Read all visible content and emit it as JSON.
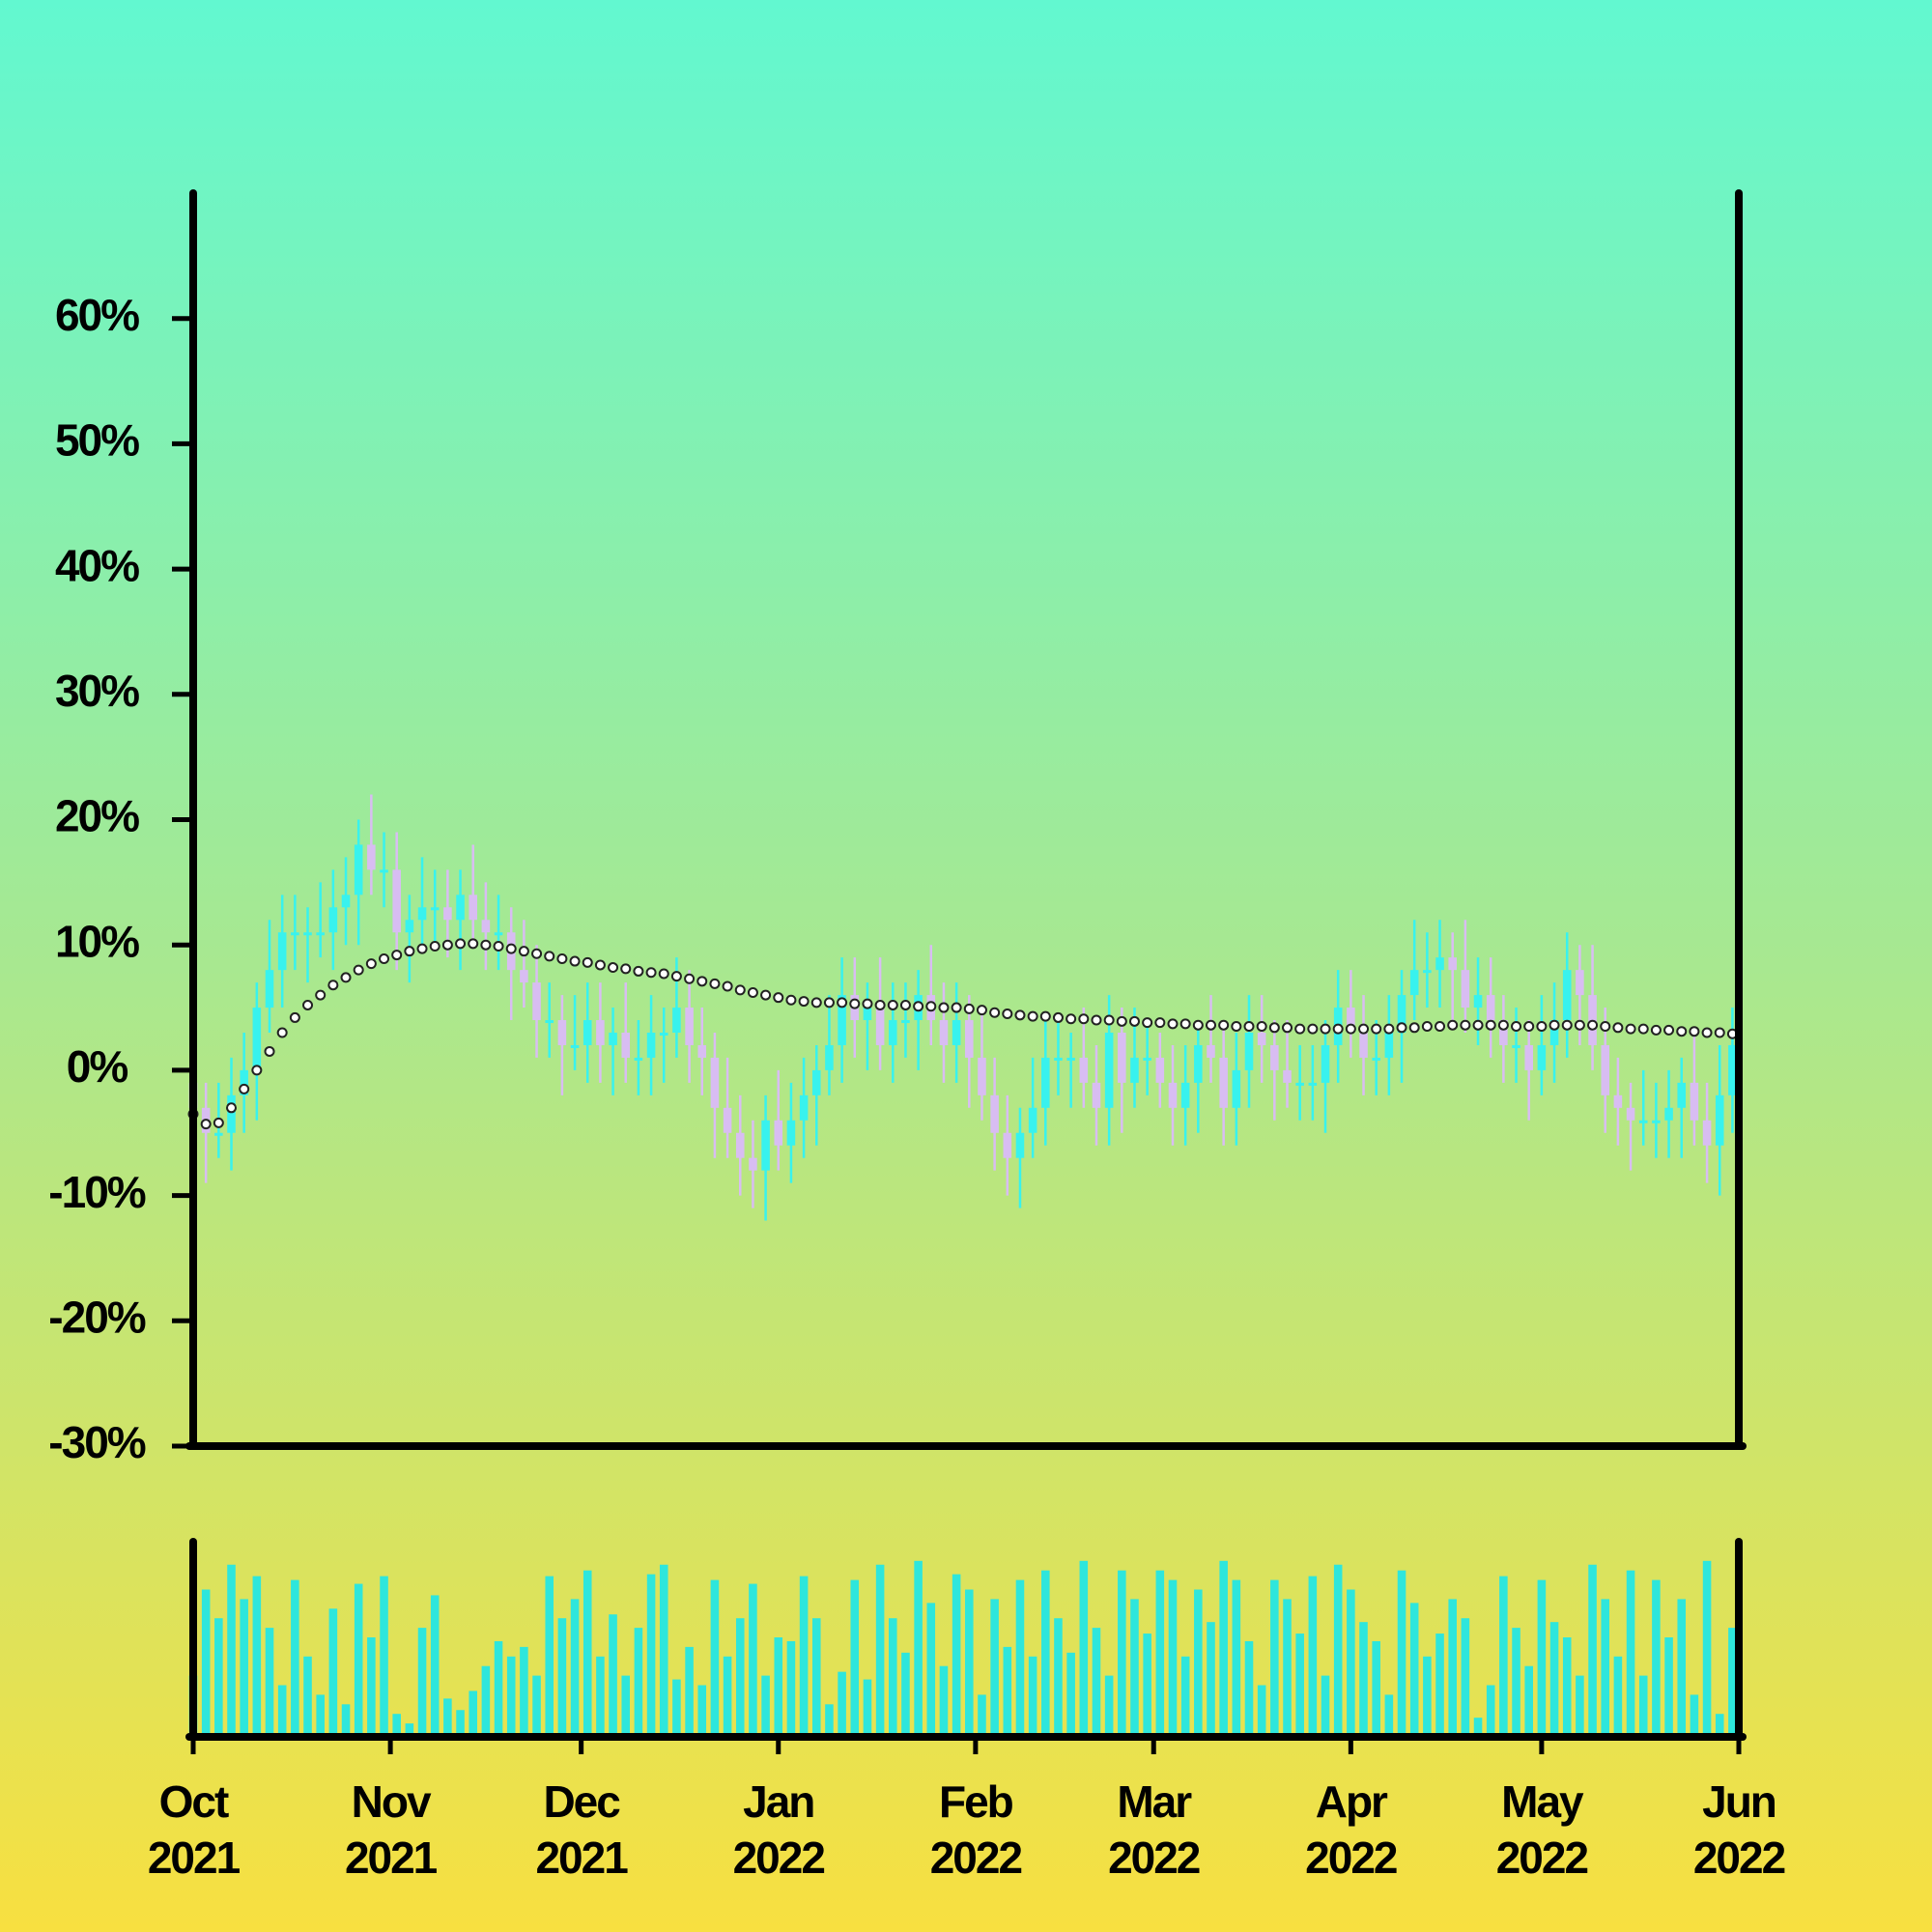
{
  "chart_data": {
    "type": "candlestick",
    "x": [
      0,
      2,
      4,
      6,
      8,
      10,
      12,
      14,
      16,
      18,
      20,
      22,
      24,
      26,
      28,
      30,
      32,
      34,
      36,
      38,
      40,
      42,
      44,
      46,
      48,
      50,
      52,
      54,
      56,
      58,
      60,
      62,
      64,
      66,
      68,
      70,
      72,
      74,
      76,
      78,
      80,
      82,
      84,
      86,
      88,
      90,
      92,
      94,
      96,
      98,
      100,
      102,
      104,
      106,
      108,
      110,
      112,
      114,
      116,
      118,
      120,
      122,
      124,
      126,
      128,
      130,
      132,
      134,
      136,
      138,
      140,
      142,
      144,
      146,
      148,
      150,
      152,
      154,
      156,
      158,
      160,
      162,
      164,
      166,
      168,
      170,
      172,
      174,
      176,
      178,
      180,
      182,
      184,
      186,
      188,
      190,
      192,
      194,
      196,
      198,
      200,
      202,
      204,
      206,
      208,
      210,
      212,
      214,
      216,
      218,
      220,
      222,
      224,
      226,
      228,
      230,
      232,
      234,
      236,
      238,
      240,
      242
    ],
    "xlim": [
      0,
      243
    ],
    "xticks": [
      {
        "value": 0,
        "label": "Oct 2021"
      },
      {
        "value": 31,
        "label": "Nov 2021"
      },
      {
        "value": 61,
        "label": "Dec 2021"
      },
      {
        "value": 92,
        "label": "Jan 2022"
      },
      {
        "value": 123,
        "label": "Feb 2022"
      },
      {
        "value": 151,
        "label": "Mar 2022"
      },
      {
        "value": 182,
        "label": "Apr 2022"
      },
      {
        "value": 212,
        "label": "May 2022"
      },
      {
        "value": 243,
        "label": "Jun 2022"
      }
    ],
    "ylim": [
      -30,
      70
    ],
    "yticks": [
      {
        "value": -30,
        "label": "-30%"
      },
      {
        "value": -20,
        "label": "-20%"
      },
      {
        "value": -10,
        "label": "-10%"
      },
      {
        "value": 0,
        "label": "0%"
      },
      {
        "value": 10,
        "label": "10%"
      },
      {
        "value": 20,
        "label": "20%"
      },
      {
        "value": 30,
        "label": "30%"
      },
      {
        "value": 40,
        "label": "40%"
      },
      {
        "value": 50,
        "label": "50%"
      },
      {
        "value": 60,
        "label": "60%"
      }
    ],
    "up_color": "#38f2ee",
    "down_color": "#d8bdf2",
    "open": [
      -1,
      -3,
      -5,
      -5,
      -2,
      0,
      5,
      8,
      11,
      11,
      11,
      11,
      13,
      14,
      18,
      16,
      16,
      11,
      12,
      13,
      13,
      12,
      14,
      12,
      11,
      11,
      8,
      7,
      4,
      4,
      2,
      2,
      4,
      2,
      3,
      1,
      1,
      3,
      3,
      5,
      2,
      1,
      -3,
      -5,
      -7,
      -8,
      -4,
      -6,
      -4,
      -2,
      0,
      2,
      6,
      4,
      5,
      2,
      4,
      4,
      6,
      4,
      2,
      4,
      1,
      -2,
      -5,
      -7,
      -5,
      -3,
      1,
      1,
      1,
      -1,
      -3,
      3,
      -1,
      1,
      1,
      -1,
      -3,
      -1,
      2,
      1,
      -3,
      0,
      3,
      2,
      0,
      -1,
      -1,
      -1,
      2,
      5,
      3,
      1,
      1,
      3,
      6,
      8,
      8,
      9,
      8,
      5,
      6,
      4,
      2,
      2,
      0,
      2,
      4,
      8,
      6,
      2,
      -2,
      -3,
      -4,
      -4,
      -4,
      -3,
      -1,
      -4,
      -6,
      -2
    ],
    "high": [
      2,
      -1,
      -1,
      1,
      3,
      7,
      12,
      14,
      14,
      13,
      15,
      16,
      17,
      20,
      22,
      19,
      19,
      14,
      17,
      16,
      16,
      16,
      18,
      15,
      14,
      13,
      12,
      10,
      7,
      6,
      6,
      7,
      7,
      5,
      7,
      4,
      6,
      5,
      9,
      8,
      5,
      3,
      1,
      -2,
      -4,
      -2,
      0,
      -1,
      1,
      2,
      6,
      9,
      9,
      7,
      9,
      7,
      7,
      8,
      10,
      7,
      7,
      6,
      5,
      1,
      -2,
      -3,
      1,
      4,
      4,
      3,
      5,
      2,
      6,
      5,
      5,
      4,
      3,
      2,
      2,
      4,
      6,
      4,
      3,
      6,
      6,
      4,
      4,
      2,
      2,
      4,
      8,
      8,
      6,
      4,
      6,
      8,
      12,
      11,
      12,
      11,
      12,
      9,
      9,
      6,
      5,
      4,
      6,
      7,
      11,
      10,
      10,
      5,
      1,
      -1,
      0,
      -1,
      0,
      1,
      3,
      -1,
      2,
      5
    ],
    "low": [
      -6,
      -9,
      -7,
      -8,
      -5,
      -4,
      3,
      5,
      8,
      7,
      9,
      8,
      10,
      10,
      14,
      13,
      8,
      7,
      10,
      10,
      9,
      8,
      10,
      8,
      8,
      4,
      5,
      1,
      1,
      -2,
      0,
      -1,
      -1,
      -2,
      -1,
      -2,
      -2,
      -1,
      1,
      -1,
      -2,
      -7,
      -7,
      -10,
      -11,
      -12,
      -8,
      -9,
      -7,
      -6,
      -2,
      -1,
      1,
      0,
      0,
      -1,
      1,
      0,
      2,
      -1,
      -1,
      -3,
      -4,
      -8,
      -10,
      -11,
      -7,
      -6,
      -2,
      -3,
      -3,
      -6,
      -6,
      -5,
      -3,
      -2,
      -3,
      -6,
      -6,
      -5,
      -1,
      -6,
      -6,
      -3,
      -1,
      -4,
      -3,
      -4,
      -4,
      -5,
      -1,
      1,
      -2,
      -2,
      -2,
      -1,
      4,
      5,
      5,
      4,
      3,
      2,
      1,
      -1,
      -1,
      -4,
      -2,
      -1,
      1,
      2,
      0,
      -5,
      -6,
      -8,
      -6,
      -7,
      -7,
      -7,
      -6,
      -9,
      -10,
      -5
    ],
    "close": [
      -3,
      -5,
      -5,
      -2,
      0,
      5,
      8,
      11,
      11,
      11,
      11,
      13,
      14,
      18,
      16,
      16,
      11,
      12,
      13,
      13,
      12,
      14,
      12,
      11,
      11,
      8,
      7,
      4,
      4,
      2,
      2,
      4,
      2,
      3,
      1,
      1,
      3,
      3,
      5,
      2,
      1,
      -3,
      -5,
      -7,
      -8,
      -4,
      -6,
      -4,
      -2,
      0,
      2,
      6,
      4,
      5,
      2,
      4,
      4,
      6,
      4,
      2,
      4,
      1,
      -2,
      -5,
      -7,
      -5,
      -3,
      1,
      1,
      1,
      -1,
      -3,
      3,
      -1,
      1,
      1,
      -1,
      -3,
      -1,
      2,
      1,
      -3,
      0,
      3,
      2,
      0,
      -1,
      -1,
      -1,
      2,
      5,
      3,
      1,
      1,
      3,
      6,
      8,
      8,
      9,
      8,
      5,
      6,
      4,
      2,
      2,
      0,
      2,
      4,
      8,
      6,
      2,
      -2,
      -3,
      -4,
      -4,
      -4,
      -3,
      -1,
      -4,
      -6,
      -2,
      2
    ],
    "moving_average": {
      "color": "#ffffff",
      "values": [
        -3.5,
        -4.3,
        -4.2,
        -3,
        -1.5,
        0,
        1.5,
        3,
        4.2,
        5.2,
        6,
        6.8,
        7.4,
        8,
        8.5,
        8.9,
        9.2,
        9.5,
        9.7,
        9.9,
        10,
        10.1,
        10.1,
        10,
        9.9,
        9.7,
        9.5,
        9.3,
        9.1,
        8.9,
        8.7,
        8.6,
        8.4,
        8.2,
        8.1,
        7.9,
        7.8,
        7.7,
        7.5,
        7.3,
        7.1,
        6.9,
        6.7,
        6.4,
        6.2,
        6,
        5.8,
        5.6,
        5.5,
        5.4,
        5.4,
        5.4,
        5.3,
        5.3,
        5.2,
        5.2,
        5.2,
        5.1,
        5.1,
        5,
        5,
        4.9,
        4.8,
        4.6,
        4.5,
        4.4,
        4.3,
        4.3,
        4.2,
        4.1,
        4.1,
        4,
        4,
        3.9,
        3.9,
        3.8,
        3.8,
        3.7,
        3.7,
        3.6,
        3.6,
        3.6,
        3.5,
        3.5,
        3.5,
        3.4,
        3.4,
        3.3,
        3.3,
        3.3,
        3.3,
        3.3,
        3.3,
        3.3,
        3.3,
        3.4,
        3.4,
        3.5,
        3.5,
        3.6,
        3.6,
        3.6,
        3.6,
        3.6,
        3.5,
        3.5,
        3.5,
        3.6,
        3.6,
        3.6,
        3.6,
        3.5,
        3.4,
        3.3,
        3.3,
        3.2,
        3.2,
        3.1,
        3.1,
        3,
        3,
        2.9
      ]
    },
    "volume": {
      "color": "#2ee6dc",
      "ylim": [
        0,
        100
      ],
      "values": [
        30,
        75,
        60,
        88,
        70,
        82,
        55,
        25,
        80,
        40,
        20,
        65,
        15,
        78,
        50,
        82,
        10,
        5,
        55,
        72,
        18,
        12,
        22,
        35,
        48,
        40,
        45,
        30,
        82,
        60,
        70,
        85,
        40,
        62,
        30,
        55,
        83,
        88,
        28,
        45,
        25,
        80,
        40,
        60,
        78,
        30,
        50,
        48,
        82,
        60,
        15,
        32,
        80,
        28,
        88,
        60,
        42,
        90,
        68,
        35,
        83,
        75,
        20,
        70,
        45,
        80,
        40,
        85,
        60,
        42,
        90,
        55,
        30,
        85,
        70,
        52,
        85,
        80,
        40,
        75,
        58,
        90,
        80,
        48,
        25,
        80,
        70,
        52,
        82,
        30,
        88,
        75,
        58,
        48,
        20,
        85,
        68,
        40,
        52,
        70,
        60,
        8,
        25,
        82,
        55,
        35,
        80,
        58,
        50,
        30,
        88,
        70,
        40,
        85,
        30,
        80,
        50,
        70,
        20,
        90,
        10,
        55
      ]
    }
  }
}
